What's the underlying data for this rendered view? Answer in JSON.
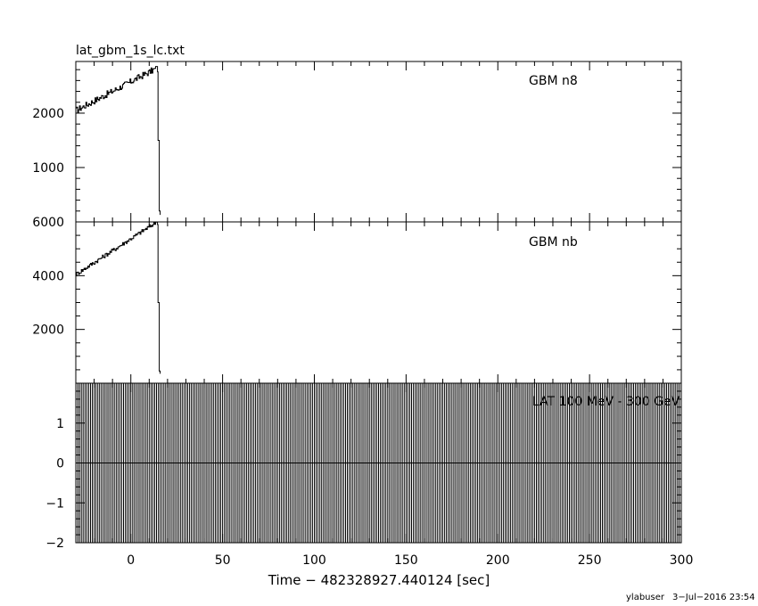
{
  "chart_data": [
    {
      "type": "line",
      "file_title": "lat_gbm_1s_lc.txt",
      "series": [
        {
          "name": "GBM n8"
        }
      ],
      "xlim": [
        -30,
        300
      ],
      "ylim": [
        0,
        2950
      ],
      "yticks": [
        1000,
        2000
      ],
      "y_minor_step": 200,
      "curve": {
        "rise_start": [
          -30,
          2050
        ],
        "rise_end": [
          13.5,
          2820
        ],
        "drop_at": 14.5,
        "tail": [
          [
            14.8,
            1500
          ],
          [
            15.5,
            200
          ],
          [
            16,
            130
          ]
        ],
        "noise": 60
      }
    },
    {
      "type": "line",
      "series": [
        {
          "name": "GBM nb"
        }
      ],
      "xlim": [
        -30,
        300
      ],
      "ylim": [
        0,
        6000
      ],
      "yticks": [
        2000,
        4000,
        6000
      ],
      "y_minor_step": 500,
      "curve": {
        "rise_start": [
          -30,
          4050
        ],
        "rise_end": [
          13.5,
          5980
        ],
        "drop_at": 14.5,
        "tail": [
          [
            14.8,
            3000
          ],
          [
            15.5,
            450
          ],
          [
            16,
            350
          ]
        ],
        "noise": 80
      }
    },
    {
      "type": "line",
      "series": [
        {
          "name": "LAT 100 MeV - 300 GeV"
        }
      ],
      "xlim": [
        -30,
        300
      ],
      "ylim": [
        -2,
        2
      ],
      "yticks": [
        -2,
        -1,
        0,
        1
      ],
      "y_minor_step": 0.2,
      "values_flat": 0,
      "error_bar_step": 1
    }
  ],
  "x_axis": {
    "label": "Time − 482328927.440124 [sec]",
    "ticks": [
      0,
      50,
      100,
      150,
      200,
      250,
      300
    ],
    "minor_step": 10
  },
  "footer": {
    "user": "ylabuser",
    "date": "3−Jul−2016 23:54"
  }
}
